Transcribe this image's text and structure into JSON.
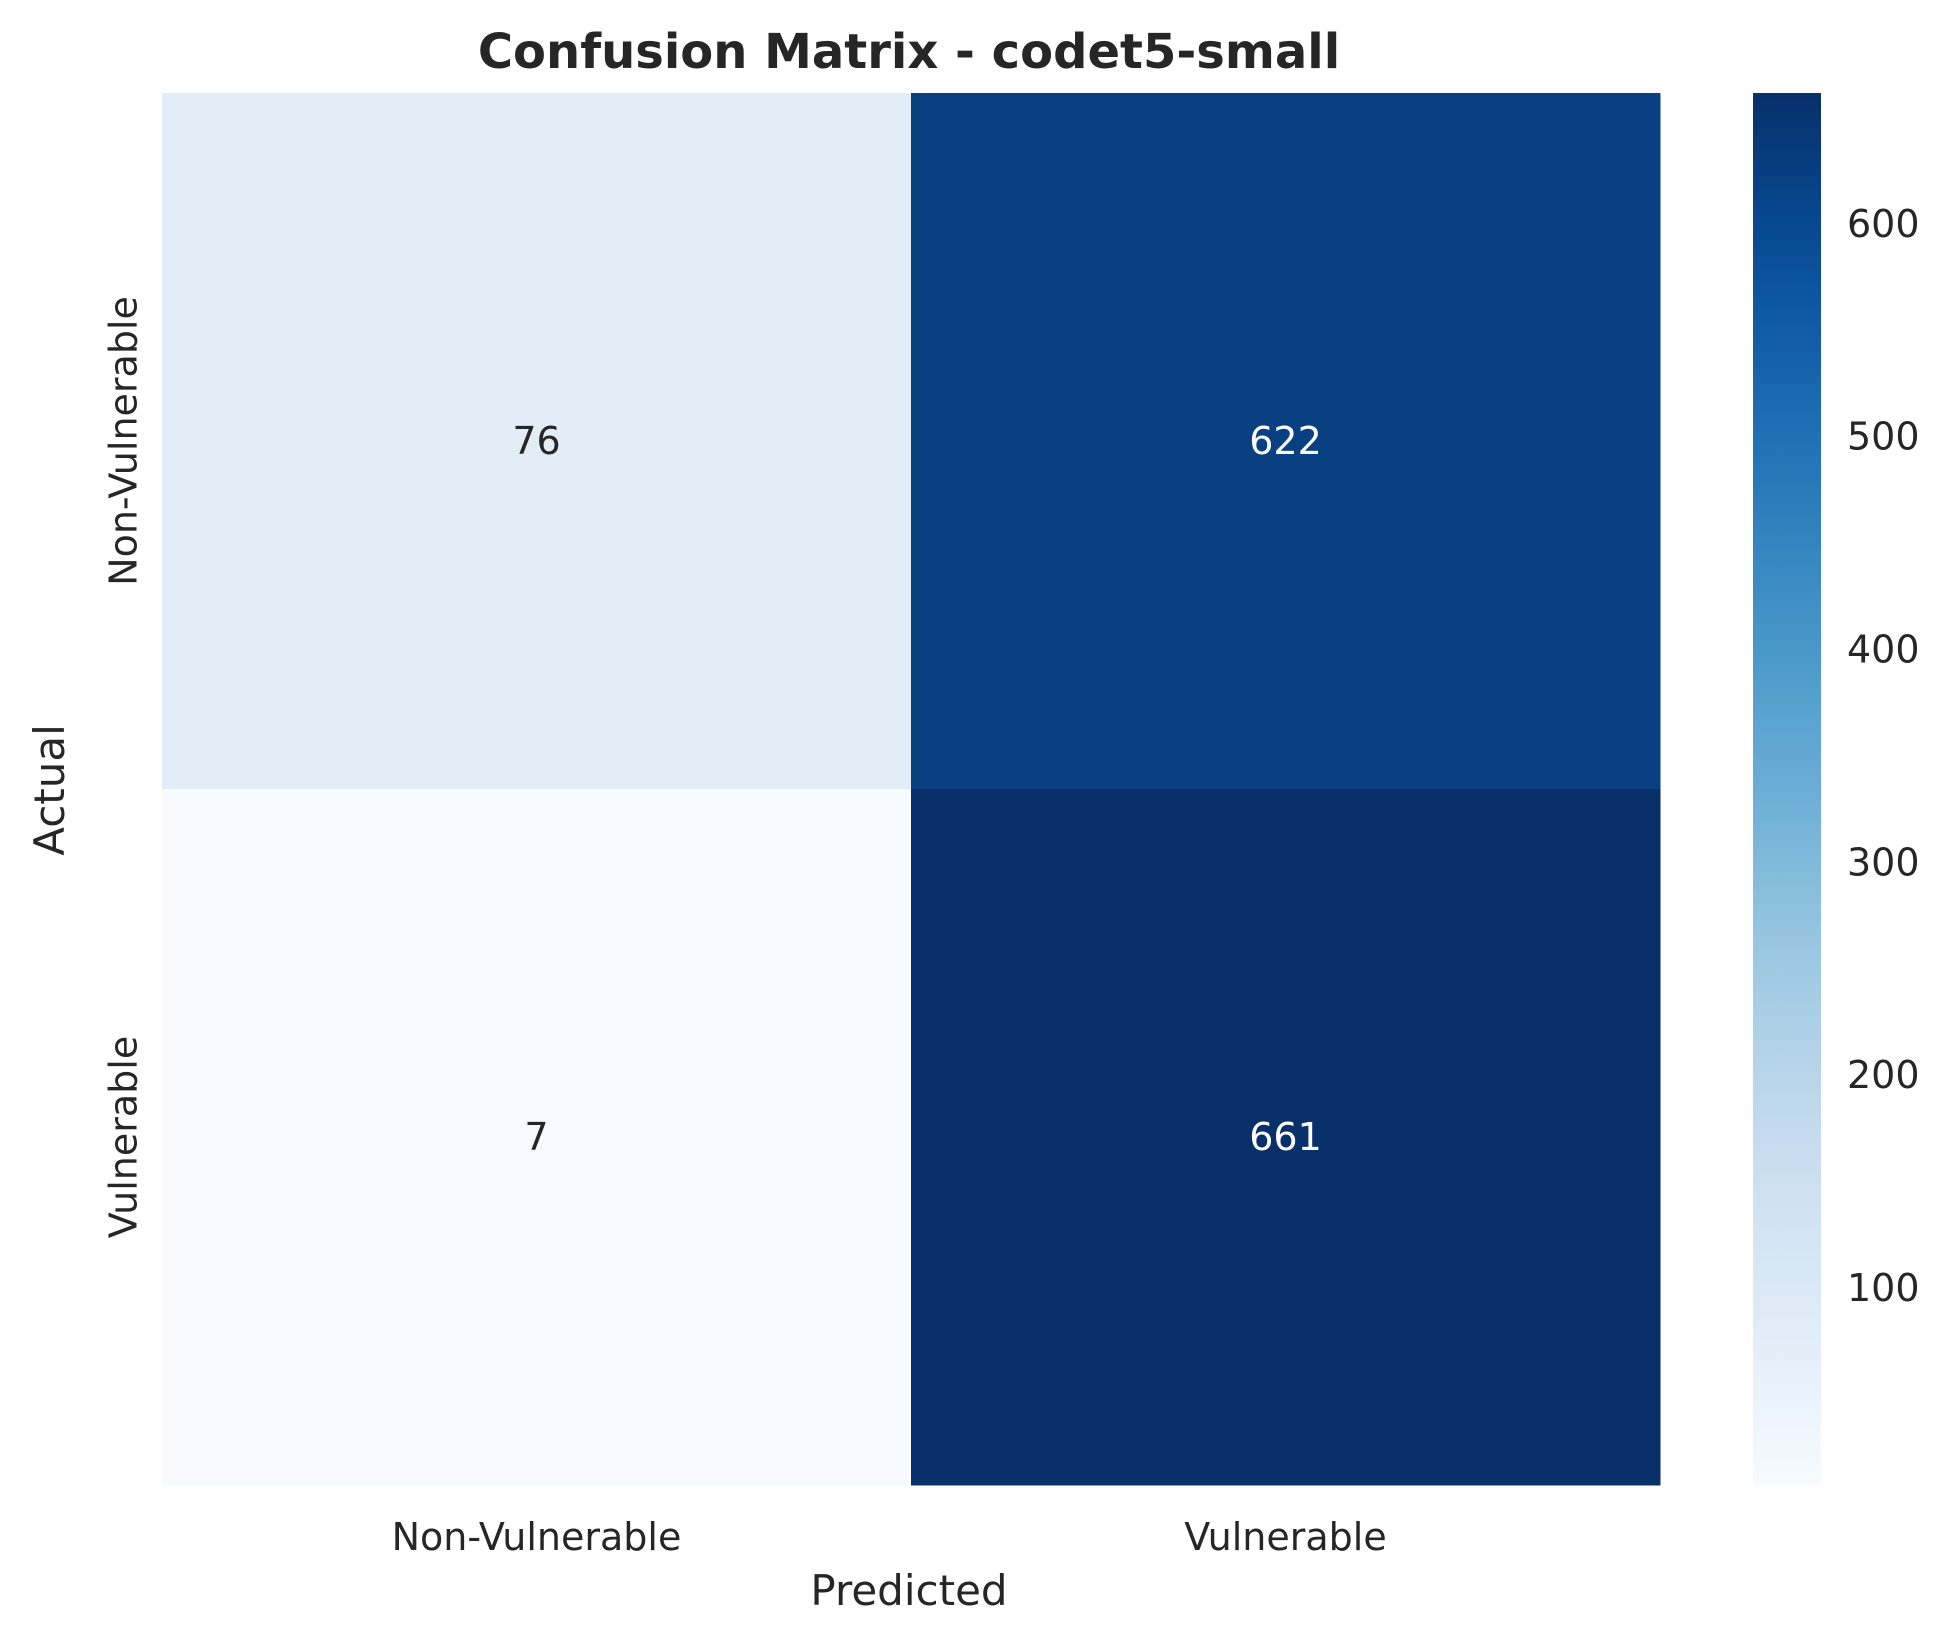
{
  "chart_data": {
    "type": "heatmap",
    "title": "Confusion Matrix - codet5-small",
    "xlabel": "Predicted",
    "ylabel": "Actual",
    "x_categories": [
      "Non-Vulnerable",
      "Vulnerable"
    ],
    "y_categories": [
      "Non-Vulnerable",
      "Vulnerable"
    ],
    "values": [
      [
        76,
        622
      ],
      [
        7,
        661
      ]
    ],
    "colormap": "Blues",
    "colorbar": {
      "range": [
        7,
        661
      ],
      "ticks": [
        100,
        200,
        300,
        400,
        500,
        600
      ]
    },
    "grid": false
  }
}
